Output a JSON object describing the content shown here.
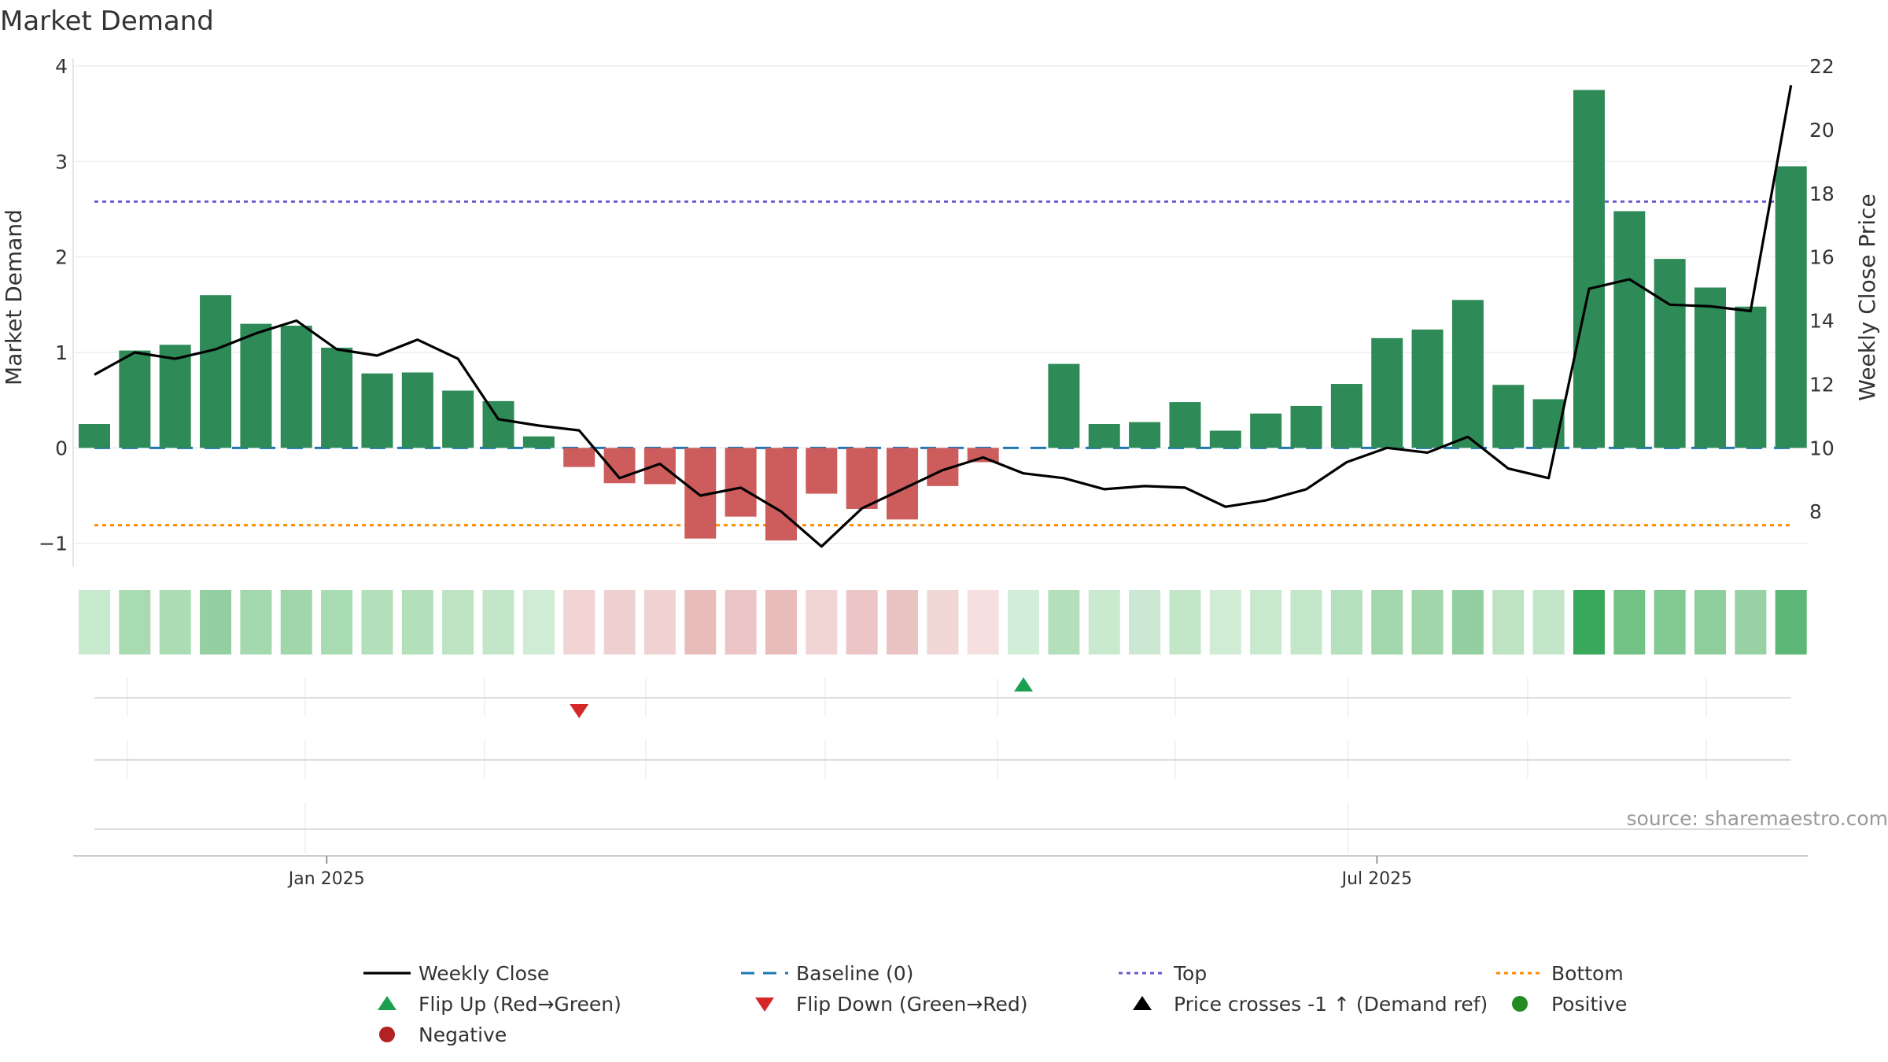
{
  "chart_data": {
    "type": "bar",
    "title": "Market Demand",
    "ylabel": "Market Demand",
    "y2label": "Weekly Close Price",
    "ylim": [
      -1.25,
      4.0
    ],
    "y2lim": [
      6.25,
      22.0
    ],
    "yticks": [
      -1,
      0,
      1,
      2,
      3,
      4
    ],
    "y2ticks": [
      8,
      10,
      12,
      14,
      16,
      18,
      20,
      22
    ],
    "ytick_labels": [
      "−1",
      "0",
      "1",
      "2",
      "3",
      "4"
    ],
    "y2tick_labels": [
      "8",
      "10",
      "12",
      "14",
      "16",
      "18",
      "20",
      "22"
    ],
    "xtick_labels": [
      "Jan 2025",
      "Jul 2025"
    ],
    "xtick_index": [
      5.75,
      31.75
    ],
    "baseline": 0,
    "top": 2.58,
    "bottom": -0.81,
    "demand": [
      0.25,
      1.02,
      1.08,
      1.6,
      1.3,
      1.28,
      1.05,
      0.78,
      0.79,
      0.6,
      0.49,
      0.12,
      -0.2,
      -0.37,
      -0.38,
      -0.95,
      -0.72,
      -0.97,
      -0.48,
      -0.64,
      -0.75,
      -0.4,
      -0.15,
      0.0,
      0.88,
      0.25,
      0.27,
      0.48,
      0.18,
      0.36,
      0.44,
      0.67,
      1.15,
      1.24,
      1.55,
      0.66,
      0.51,
      3.75,
      2.48,
      1.98,
      1.68,
      1.48,
      2.95
    ],
    "weekly_close": [
      12.3,
      13.0,
      12.8,
      13.1,
      13.6,
      14.0,
      13.1,
      12.9,
      13.4,
      12.8,
      10.9,
      10.7,
      10.55,
      9.05,
      9.5,
      8.5,
      8.75,
      8.0,
      6.9,
      8.1,
      8.7,
      9.3,
      9.7,
      9.2,
      9.05,
      8.7,
      8.8,
      8.75,
      8.15,
      8.35,
      8.7,
      9.55,
      10.0,
      9.85,
      10.35,
      9.35,
      9.05,
      15.0,
      15.3,
      14.5,
      14.45,
      14.3,
      21.4
    ],
    "strip_colors": [
      "#c7e9cd",
      "#a9dbb2",
      "#abdcb3",
      "#93cfa0",
      "#a4d8ae",
      "#a1d6ab",
      "#a9dbb2",
      "#b3dfbb",
      "#b3dfbb",
      "#bde3c3",
      "#c2e6c8",
      "#d0ecd4",
      "#f2d4d4",
      "#efd0d0",
      "#f0d2d2",
      "#e9bcbc",
      "#ecc6c6",
      "#e9bcbc",
      "#f1d4d4",
      "#ecc6c6",
      "#e9c2c2",
      "#f2d7d7",
      "#f5dfdf",
      "#d3eed8",
      "#b3dfbb",
      "#c9eacf",
      "#cde8d2",
      "#c3e6c9",
      "#d0ecd4",
      "#c9e9cf",
      "#c4e7ca",
      "#b5e0bd",
      "#a2d6ac",
      "#a0d6aa",
      "#93cfa0",
      "#bde3c3",
      "#c2e6c8",
      "#3aa85a",
      "#72c285",
      "#83c993",
      "#8ecd9c",
      "#98d2a4",
      "#5db776"
    ],
    "flip_up_index": [
      23
    ],
    "flip_down_index": [
      12
    ],
    "colors": {
      "positive_bar": "#2e8b57",
      "negative_bar": "#cd5c5c",
      "weekly_close": "#000000",
      "baseline": "#1f77b4",
      "top": "#6a5acd",
      "bottom": "#ff8c00",
      "flip_up": "#1aa04f",
      "flip_down": "#d62728",
      "positive_dot": "#228b22",
      "negative_dot": "#b22222"
    },
    "legend_position": "bottom",
    "legend": [
      {
        "key": "weekly_close",
        "label": "Weekly Close",
        "marker": "solid-line"
      },
      {
        "key": "baseline",
        "label": "Baseline (0)",
        "marker": "dashed-line"
      },
      {
        "key": "top",
        "label": "Top",
        "marker": "dotted-line"
      },
      {
        "key": "bottom",
        "label": "Bottom",
        "marker": "dotted-line"
      },
      {
        "key": "flip_up",
        "label": "Flip Up (Red→Green)",
        "marker": "triangle-up"
      },
      {
        "key": "flip_down",
        "label": "Flip Down (Green→Red)",
        "marker": "triangle-down"
      },
      {
        "key": "price_cross",
        "label": "Price crosses -1 ↑ (Demand ref)",
        "marker": "triangle-up-black"
      },
      {
        "key": "positive_dot",
        "label": "Positive",
        "marker": "circle"
      },
      {
        "key": "negative_dot",
        "label": "Negative",
        "marker": "circle"
      }
    ],
    "source": "source: sharemaestro.com"
  }
}
